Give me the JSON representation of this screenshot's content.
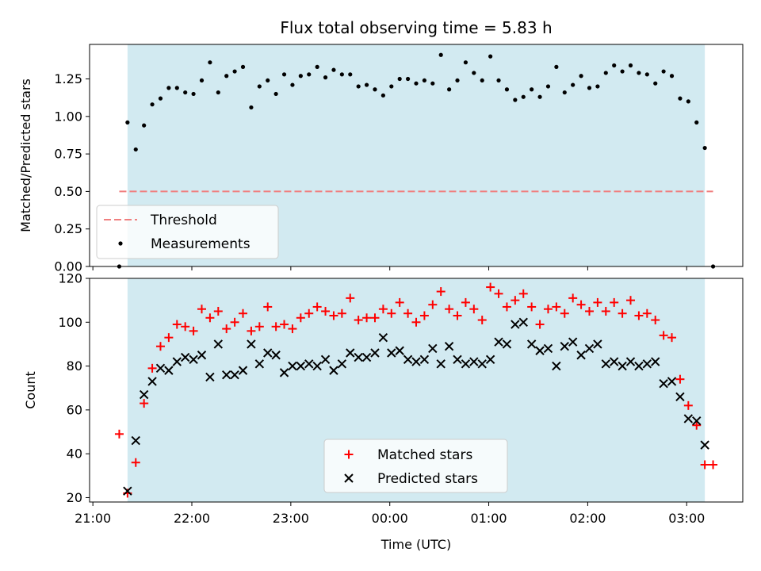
{
  "chart_data": [
    {
      "type": "scatter",
      "title": "Flux total observing time = 5.83 h",
      "xlabel": "",
      "ylabel": "Matched/Predicted stars",
      "xlim": [
        "20:58",
        "03:34"
      ],
      "ylim": [
        0,
        1.48
      ],
      "yticks": [
        "0.00",
        "0.25",
        "0.50",
        "0.75",
        "1.00",
        "1.25"
      ],
      "shaded_span": [
        "21:21",
        "03:11"
      ],
      "threshold": {
        "name": "Threshold",
        "value": 0.5,
        "x_range": [
          "21:16",
          "03:16"
        ],
        "color": "#f07f7f",
        "style": "dashed"
      },
      "series": [
        {
          "name": "Measurements",
          "color": "#000000",
          "marker": "dot",
          "x": [
            "21:16",
            "21:21",
            "21:26",
            "21:31",
            "21:36",
            "21:41",
            "21:46",
            "21:51",
            "21:56",
            "22:01",
            "22:06",
            "22:11",
            "22:16",
            "22:21",
            "22:26",
            "22:31",
            "22:36",
            "22:41",
            "22:46",
            "22:51",
            "22:56",
            "23:01",
            "23:06",
            "23:11",
            "23:16",
            "23:21",
            "23:26",
            "23:31",
            "23:36",
            "23:41",
            "23:46",
            "23:51",
            "23:56",
            "00:01",
            "00:06",
            "00:11",
            "00:16",
            "00:21",
            "00:26",
            "00:31",
            "00:36",
            "00:41",
            "00:46",
            "00:51",
            "00:56",
            "01:01",
            "01:06",
            "01:11",
            "01:16",
            "01:21",
            "01:26",
            "01:31",
            "01:36",
            "01:41",
            "01:46",
            "01:51",
            "01:56",
            "02:01",
            "02:06",
            "02:11",
            "02:16",
            "02:21",
            "02:26",
            "02:31",
            "02:36",
            "02:41",
            "02:46",
            "02:51",
            "02:56",
            "03:01",
            "03:06",
            "03:11",
            "03:16"
          ],
          "y": [
            0.0,
            0.96,
            0.78,
            0.94,
            1.08,
            1.12,
            1.19,
            1.19,
            1.16,
            1.15,
            1.24,
            1.36,
            1.16,
            1.27,
            1.3,
            1.33,
            1.06,
            1.2,
            1.24,
            1.15,
            1.28,
            1.21,
            1.27,
            1.28,
            1.33,
            1.26,
            1.31,
            1.28,
            1.28,
            1.2,
            1.21,
            1.18,
            1.14,
            1.2,
            1.25,
            1.25,
            1.22,
            1.24,
            1.22,
            1.41,
            1.18,
            1.24,
            1.36,
            1.29,
            1.24,
            1.4,
            1.24,
            1.18,
            1.11,
            1.13,
            1.18,
            1.13,
            1.2,
            1.33,
            1.16,
            1.21,
            1.27,
            1.19,
            1.2,
            1.29,
            1.34,
            1.3,
            1.34,
            1.29,
            1.28,
            1.22,
            1.3,
            1.27,
            1.12,
            1.1,
            0.96,
            0.79,
            0.0
          ]
        }
      ],
      "legend": {
        "placement": "lower-left",
        "entries": [
          "Threshold",
          "Measurements"
        ]
      }
    },
    {
      "type": "scatter",
      "title": "",
      "xlabel": "Time (UTC)",
      "ylabel": "Count",
      "xlim": [
        "20:58",
        "03:34"
      ],
      "ylim": [
        18,
        120
      ],
      "xticks": [
        "21:00",
        "22:00",
        "23:00",
        "00:00",
        "01:00",
        "02:00",
        "03:00"
      ],
      "yticks": [
        "20",
        "40",
        "60",
        "80",
        "100",
        "120"
      ],
      "shaded_span": [
        "21:21",
        "03:11"
      ],
      "series": [
        {
          "name": "Matched stars",
          "color": "#ff0000",
          "marker": "plus",
          "x": [
            "21:16",
            "21:21",
            "21:26",
            "21:31",
            "21:36",
            "21:41",
            "21:46",
            "21:51",
            "21:56",
            "22:01",
            "22:06",
            "22:11",
            "22:16",
            "22:21",
            "22:26",
            "22:31",
            "22:36",
            "22:41",
            "22:46",
            "22:51",
            "22:56",
            "23:01",
            "23:06",
            "23:11",
            "23:16",
            "23:21",
            "23:26",
            "23:31",
            "23:36",
            "23:41",
            "23:46",
            "23:51",
            "23:56",
            "00:01",
            "00:06",
            "00:11",
            "00:16",
            "00:21",
            "00:26",
            "00:31",
            "00:36",
            "00:41",
            "00:46",
            "00:51",
            "00:56",
            "01:01",
            "01:06",
            "01:11",
            "01:16",
            "01:21",
            "01:26",
            "01:31",
            "01:36",
            "01:41",
            "01:46",
            "01:51",
            "01:56",
            "02:01",
            "02:06",
            "02:11",
            "02:16",
            "02:21",
            "02:26",
            "02:31",
            "02:36",
            "02:41",
            "02:46",
            "02:51",
            "02:56",
            "03:01",
            "03:06",
            "03:11",
            "03:16"
          ],
          "y": [
            49,
            22,
            36,
            63,
            79,
            89,
            93,
            99,
            98,
            96,
            106,
            102,
            105,
            97,
            100,
            104,
            96,
            98,
            107,
            98,
            99,
            97,
            102,
            104,
            107,
            105,
            103,
            104,
            111,
            101,
            102,
            102,
            106,
            104,
            109,
            104,
            100,
            103,
            108,
            114,
            106,
            103,
            109,
            106,
            101,
            116,
            113,
            107,
            110,
            113,
            107,
            99,
            106,
            107,
            104,
            111,
            108,
            105,
            109,
            105,
            109,
            104,
            110,
            103,
            104,
            101,
            94,
            93,
            74,
            62,
            53,
            35,
            35
          ]
        },
        {
          "name": "Predicted stars",
          "color": "#000000",
          "marker": "x",
          "x": [
            "21:21",
            "21:26",
            "21:31",
            "21:36",
            "21:41",
            "21:46",
            "21:51",
            "21:56",
            "22:01",
            "22:06",
            "22:11",
            "22:16",
            "22:21",
            "22:26",
            "22:31",
            "22:36",
            "22:41",
            "22:46",
            "22:51",
            "22:56",
            "23:01",
            "23:06",
            "23:11",
            "23:16",
            "23:21",
            "23:26",
            "23:31",
            "23:36",
            "23:41",
            "23:46",
            "23:51",
            "23:56",
            "00:01",
            "00:06",
            "00:11",
            "00:16",
            "00:21",
            "00:26",
            "00:31",
            "00:36",
            "00:41",
            "00:46",
            "00:51",
            "00:56",
            "01:01",
            "01:06",
            "01:11",
            "01:16",
            "01:21",
            "01:26",
            "01:31",
            "01:36",
            "01:41",
            "01:46",
            "01:51",
            "01:56",
            "02:01",
            "02:06",
            "02:11",
            "02:16",
            "02:21",
            "02:26",
            "02:31",
            "02:36",
            "02:41",
            "02:46",
            "02:51",
            "02:56",
            "03:01",
            "03:06",
            "03:11"
          ],
          "y": [
            23,
            46,
            67,
            73,
            79,
            78,
            82,
            84,
            83,
            85,
            75,
            90,
            76,
            76,
            78,
            90,
            81,
            86,
            85,
            77,
            80,
            80,
            81,
            80,
            83,
            78,
            81,
            86,
            84,
            84,
            86,
            93,
            86,
            87,
            83,
            82,
            83,
            88,
            81,
            89,
            83,
            81,
            82,
            81,
            83,
            91,
            90,
            99,
            100,
            90,
            87,
            88,
            80,
            89,
            91,
            85,
            88,
            90,
            81,
            82,
            80,
            82,
            80,
            81,
            82,
            72,
            73,
            66,
            56,
            55,
            44
          ]
        }
      ],
      "legend": {
        "placement": "lower-center",
        "entries": [
          "Matched stars",
          "Predicted stars"
        ]
      }
    }
  ]
}
